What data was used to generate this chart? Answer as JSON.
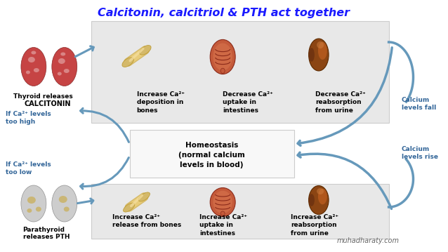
{
  "title": "Calcitonin, calcitriol & PTH act together",
  "title_color": "#1a1aff",
  "bg_color": "#ffffff",
  "box_bg": "#e8e8e8",
  "homeostasis_bg": "#f0f0f0",
  "arrow_color": "#6699bb",
  "text_color": "#000000",
  "label_color": "#336699",
  "watermark": "muhadharaty.com",
  "left_upper_line1": "Thyroid releases",
  "left_upper_line2": "CALCITONIN",
  "left_lower_line1": "Parathyroid",
  "left_lower_line2": "releases PTH",
  "cond_upper": "If Ca²⁺ levels\ntoo high",
  "cond_lower": "If Ca²⁺ levels\ntoo low",
  "right_upper": "Calcium\nlevels fall",
  "right_lower": "Calcium\nlevels rise",
  "upper_labels": [
    "Increase Ca²⁺\ndeposition in\nbones",
    "Decrease Ca²⁺\nuptake in\nintestines",
    "Decrease Ca²⁺\nreabsorption\nfrom urine"
  ],
  "lower_labels": [
    "Increase Ca²⁺\nrelease from bones",
    "Increase Ca²⁺\nuptake in\nintestines",
    "Increase Ca²⁺\nreabsorption\nfrom urine"
  ],
  "homeostasis_text": "Homeostasis\n(normal calcium\nlevels in blood)"
}
